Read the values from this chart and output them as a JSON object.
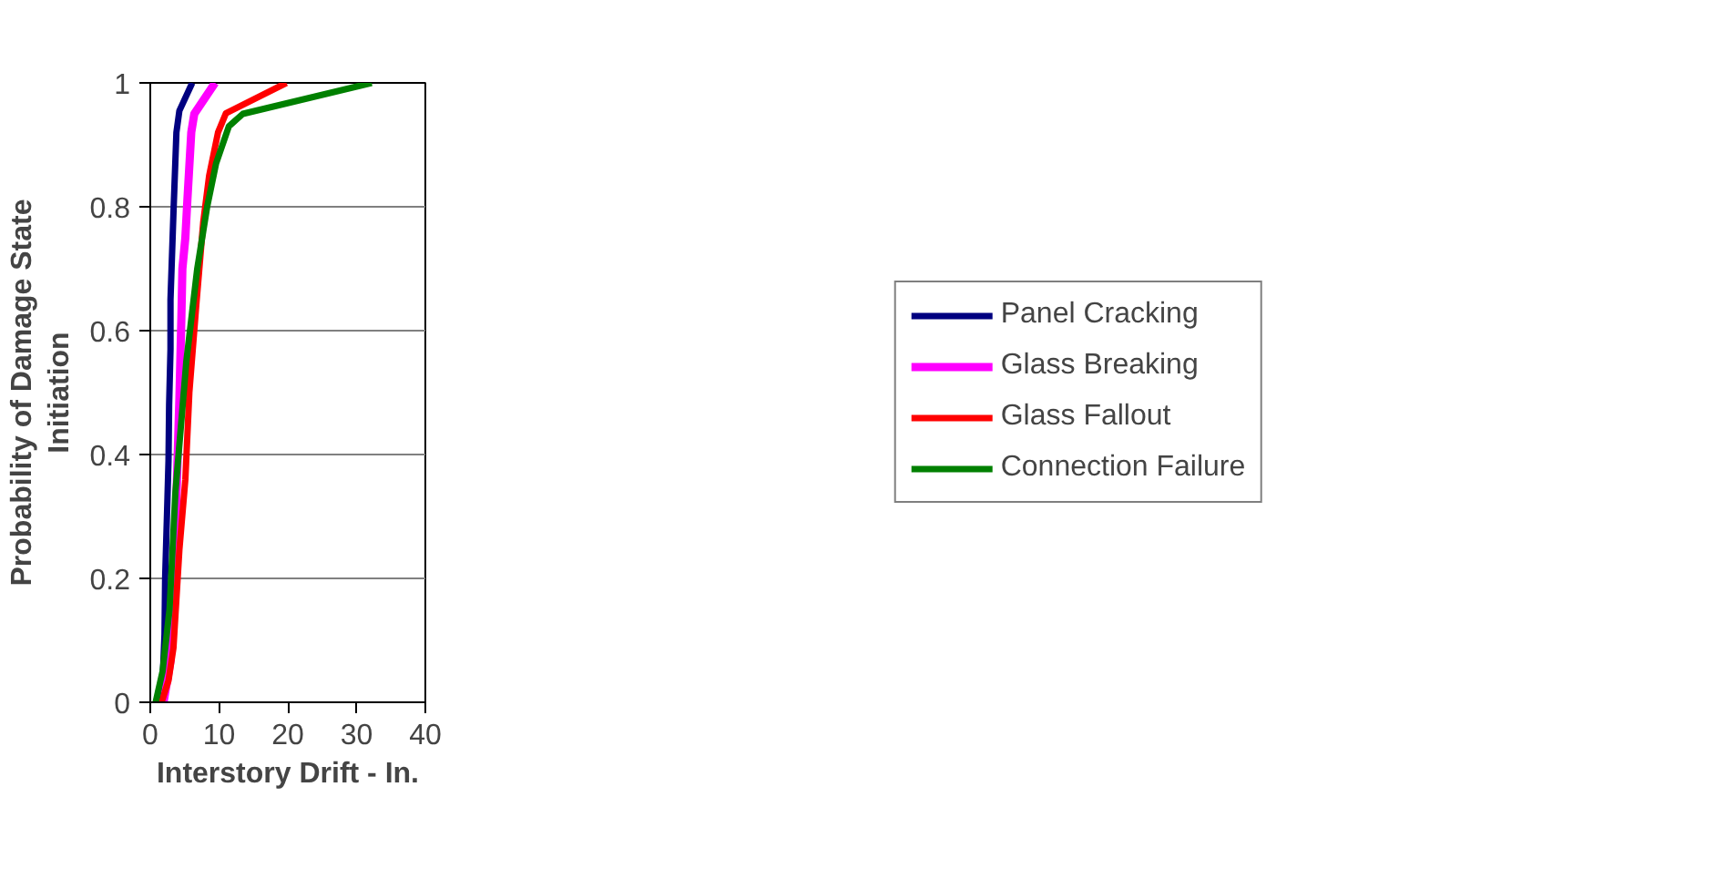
{
  "chart_data": {
    "type": "line",
    "xlabel": "Interstory Drift - In.",
    "ylabel": "Probability of Damage State Initiation",
    "xlim": [
      0,
      40
    ],
    "xticks": [
      0,
      10,
      20,
      30,
      40
    ],
    "ylim": [
      0,
      1
    ],
    "yticks": [
      0,
      0.2,
      0.4,
      0.6,
      0.8,
      1
    ],
    "grid": "y",
    "legend": "right",
    "marker": "none",
    "line_style": "solid",
    "series": [
      {
        "name": "Panel Cracking",
        "color": "#000080",
        "x": [
          1.2,
          1.8,
          2.07,
          2.16,
          2.5,
          2.65,
          2.74,
          2.94,
          2.94,
          3.37,
          3.8,
          4.23,
          6.1
        ],
        "values": [
          0,
          0.035,
          0.11,
          0.2,
          0.33,
          0.39,
          0.48,
          0.57,
          0.65,
          0.79,
          0.92,
          0.955,
          1
        ]
      },
      {
        "name": "Glass Breaking",
        "color": "#ff00ff",
        "x": [
          1.93,
          2.94,
          3.37,
          3.8,
          4.23,
          4.52,
          4.67,
          5.1,
          5.39,
          5.96,
          6.4,
          9.42
        ],
        "values": [
          0,
          0.067,
          0.17,
          0.33,
          0.49,
          0.62,
          0.7,
          0.75,
          0.81,
          0.92,
          0.95,
          1
        ]
      },
      {
        "name": "Glass Fallout",
        "color": "#ff0000",
        "x": [
          1.64,
          2.65,
          3.37,
          4.23,
          5.1,
          5.68,
          6.68,
          7.7,
          8.56,
          9.85,
          11.0,
          19.8
        ],
        "values": [
          0,
          0.035,
          0.088,
          0.246,
          0.36,
          0.5,
          0.64,
          0.775,
          0.85,
          0.92,
          0.951,
          1
        ]
      },
      {
        "name": "Connection Failure",
        "color": "#008000",
        "x": [
          0.78,
          1.79,
          2.8,
          3.66,
          5.24,
          6.83,
          8.27,
          9.57,
          11.43,
          13.46,
          32.2
        ],
        "values": [
          0,
          0.05,
          0.15,
          0.34,
          0.55,
          0.7,
          0.8,
          0.87,
          0.93,
          0.95,
          1
        ]
      }
    ]
  }
}
